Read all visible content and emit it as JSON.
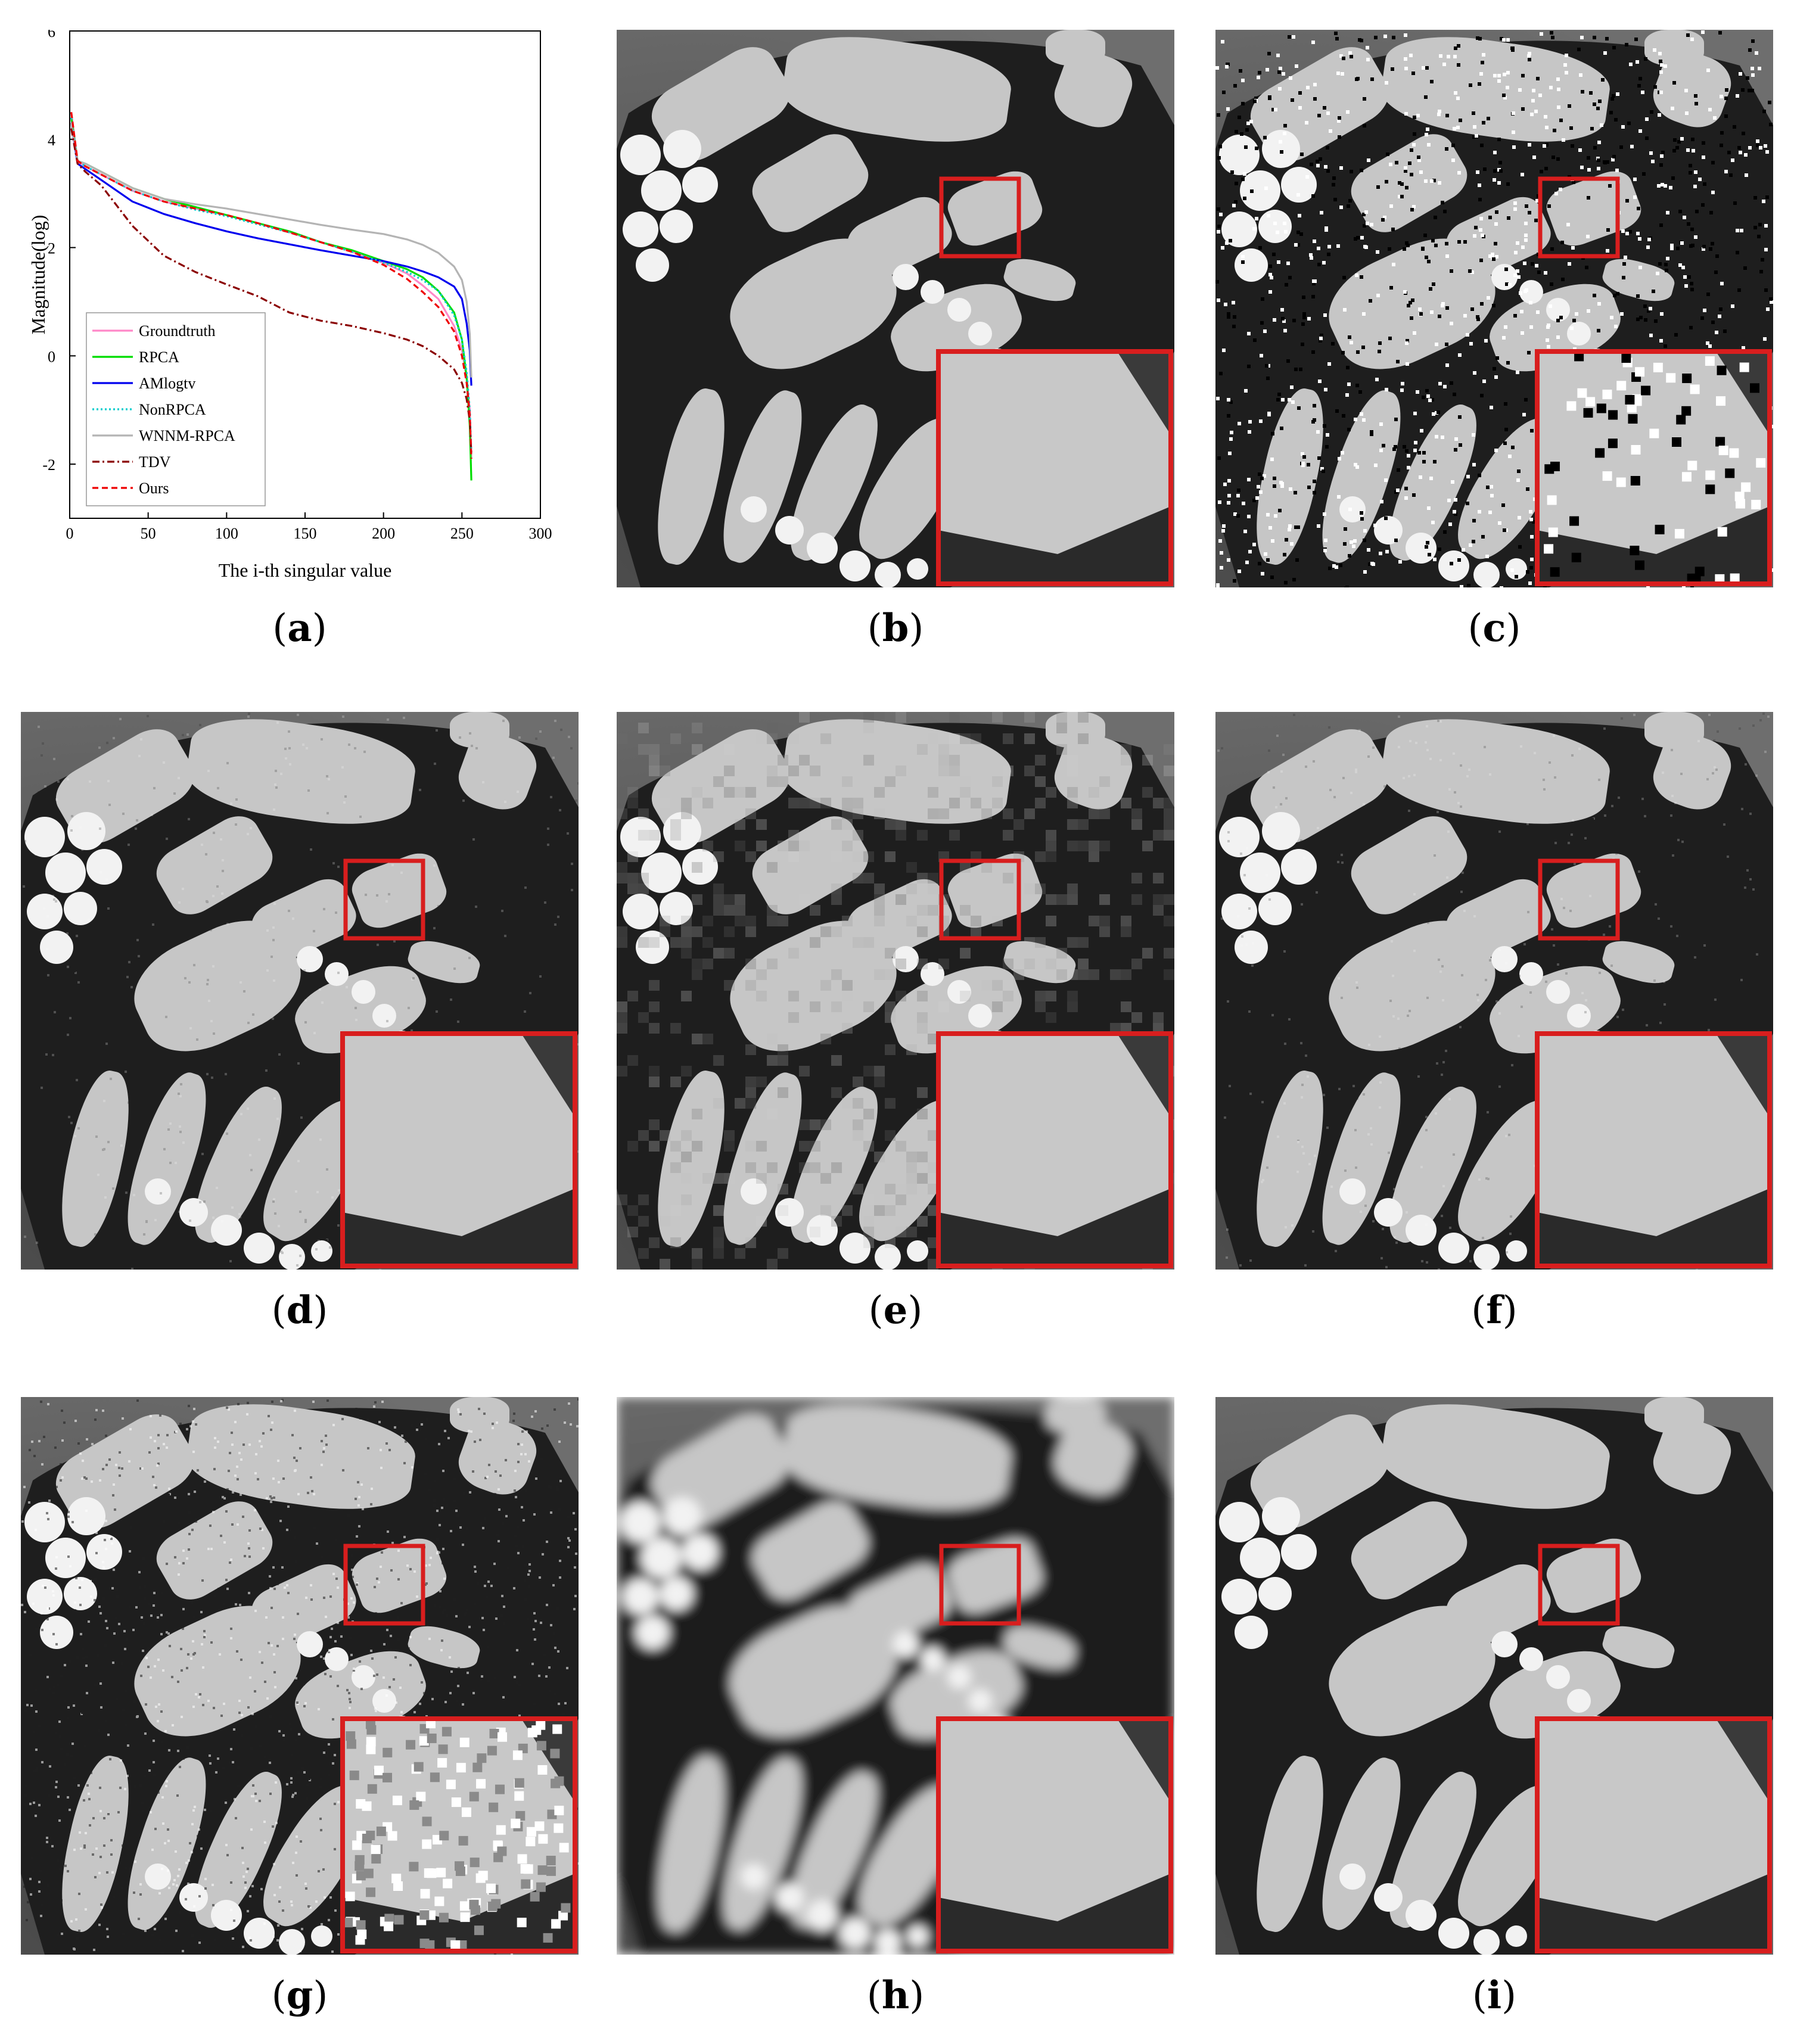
{
  "chart_data": {
    "type": "line",
    "title": "",
    "xlabel": "The i-th singular value",
    "ylabel": "Magnitude(log)",
    "xlim": [
      0,
      300
    ],
    "ylim": [
      -3,
      6
    ],
    "xticks": [
      0,
      50,
      100,
      150,
      200,
      250,
      300
    ],
    "yticks": [
      -2,
      0,
      2,
      4,
      6
    ],
    "grid": false,
    "legend_position": "bottom-left",
    "series": [
      {
        "name": "Groundtruth",
        "color": "#ff88c8",
        "dash": "solid",
        "x": [
          1,
          5,
          10,
          20,
          40,
          60,
          80,
          100,
          120,
          140,
          160,
          180,
          200,
          215,
          225,
          235,
          245,
          250,
          253,
          255,
          256
        ],
        "y": [
          4.5,
          3.6,
          3.5,
          3.35,
          3.05,
          2.85,
          2.72,
          2.6,
          2.45,
          2.28,
          2.1,
          1.92,
          1.72,
          1.52,
          1.3,
          1.05,
          0.55,
          0.1,
          -0.4,
          -1.0,
          -1.9
        ]
      },
      {
        "name": "RPCA",
        "color": "#00dd00",
        "dash": "solid",
        "x": [
          1,
          5,
          10,
          20,
          40,
          60,
          80,
          100,
          120,
          140,
          160,
          180,
          200,
          215,
          225,
          235,
          245,
          250,
          253,
          255,
          256
        ],
        "y": [
          4.4,
          3.6,
          3.55,
          3.4,
          3.1,
          2.9,
          2.75,
          2.6,
          2.45,
          2.3,
          2.1,
          1.95,
          1.75,
          1.6,
          1.45,
          1.2,
          0.8,
          0.3,
          -0.4,
          -1.3,
          -2.3
        ]
      },
      {
        "name": "AMlogtv",
        "color": "#0000ee",
        "dash": "solid",
        "x": [
          1,
          5,
          10,
          20,
          40,
          60,
          80,
          100,
          120,
          140,
          160,
          180,
          200,
          215,
          225,
          235,
          245,
          250,
          253,
          255,
          256
        ],
        "y": [
          4.3,
          3.55,
          3.45,
          3.25,
          2.85,
          2.62,
          2.45,
          2.3,
          2.17,
          2.06,
          1.95,
          1.85,
          1.75,
          1.65,
          1.56,
          1.45,
          1.28,
          1.05,
          0.6,
          0.1,
          -0.55
        ]
      },
      {
        "name": "NonRPCA",
        "color": "#00cccc",
        "dash": "dotted",
        "x": [
          1,
          5,
          10,
          20,
          40,
          60,
          80,
          100,
          120,
          140,
          160,
          180,
          200,
          215,
          225,
          235,
          245,
          250,
          253,
          255,
          256
        ],
        "y": [
          4.4,
          3.6,
          3.5,
          3.35,
          3.05,
          2.85,
          2.7,
          2.58,
          2.43,
          2.28,
          2.1,
          1.92,
          1.72,
          1.55,
          1.4,
          1.2,
          0.75,
          0.3,
          -0.3,
          -1.0,
          -1.8
        ]
      },
      {
        "name": "WNNM-RPCA",
        "color": "#b4b4b4",
        "dash": "solid",
        "x": [
          1,
          5,
          10,
          20,
          40,
          60,
          80,
          100,
          120,
          140,
          160,
          180,
          200,
          215,
          225,
          235,
          245,
          250,
          253,
          255,
          256
        ],
        "y": [
          4.3,
          3.6,
          3.55,
          3.4,
          3.1,
          2.9,
          2.8,
          2.72,
          2.62,
          2.52,
          2.42,
          2.33,
          2.25,
          2.15,
          2.05,
          1.9,
          1.65,
          1.4,
          1.0,
          0.4,
          -0.4
        ]
      },
      {
        "name": "TDV",
        "color": "#8b0000",
        "dash": "dashdot",
        "x": [
          1,
          5,
          10,
          20,
          40,
          60,
          80,
          100,
          120,
          140,
          160,
          180,
          200,
          215,
          225,
          235,
          245,
          250,
          253,
          255,
          256
        ],
        "y": [
          4.2,
          3.55,
          3.4,
          3.15,
          2.4,
          1.85,
          1.55,
          1.32,
          1.1,
          0.8,
          0.65,
          0.55,
          0.42,
          0.3,
          0.18,
          0.0,
          -0.25,
          -0.5,
          -0.8,
          -1.2,
          -1.8
        ]
      },
      {
        "name": "Ours",
        "color": "#ee0000",
        "dash": "dashed",
        "x": [
          1,
          5,
          10,
          20,
          40,
          60,
          80,
          100,
          120,
          140,
          160,
          180,
          200,
          215,
          225,
          235,
          245,
          250,
          253,
          255,
          256
        ],
        "y": [
          4.5,
          3.6,
          3.5,
          3.35,
          3.05,
          2.85,
          2.72,
          2.6,
          2.45,
          2.28,
          2.1,
          1.92,
          1.68,
          1.42,
          1.18,
          0.9,
          0.45,
          0.0,
          -0.5,
          -1.1,
          -1.9
        ]
      }
    ]
  },
  "panels": [
    {
      "letter": "a",
      "kind": "chart"
    },
    {
      "letter": "b",
      "kind": "image",
      "texture": "clean"
    },
    {
      "letter": "c",
      "kind": "image",
      "texture": "salt-pepper"
    },
    {
      "letter": "d",
      "kind": "image",
      "texture": "light-noise"
    },
    {
      "letter": "e",
      "kind": "image",
      "texture": "blocky"
    },
    {
      "letter": "f",
      "kind": "image",
      "texture": "light-noise"
    },
    {
      "letter": "g",
      "kind": "image",
      "texture": "grain"
    },
    {
      "letter": "h",
      "kind": "image",
      "texture": "blurred"
    },
    {
      "letter": "i",
      "kind": "image",
      "texture": "clean"
    }
  ],
  "colors": {
    "zoom_box": "#d81e1e",
    "wing_light": "#c6c6c6",
    "vein": "#1e1e1e",
    "background": "#5a5a5a"
  }
}
